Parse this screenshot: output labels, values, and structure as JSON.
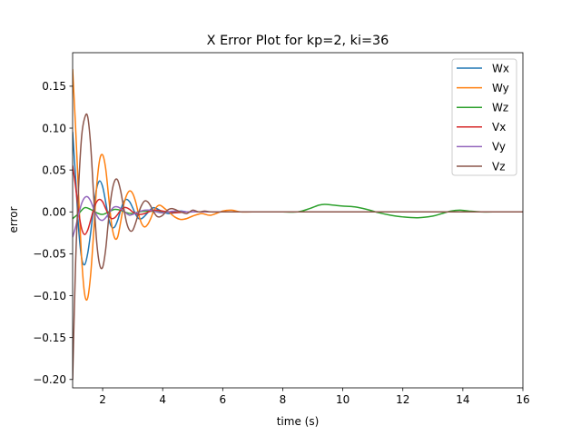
{
  "chart_data": {
    "type": "line",
    "title": "X Error Plot for kp=2, ki=36",
    "xlabel": "time (s)",
    "ylabel": "error",
    "xlim": [
      1,
      16
    ],
    "ylim": [
      -0.21,
      0.19
    ],
    "xticks": [
      2,
      4,
      6,
      8,
      10,
      12,
      14,
      16
    ],
    "xtick_labels": [
      "2",
      "4",
      "6",
      "8",
      "10",
      "12",
      "14",
      "16"
    ],
    "yticks": [
      -0.2,
      -0.15,
      -0.1,
      -0.05,
      0.0,
      0.05,
      0.1,
      0.15
    ],
    "ytick_labels": [
      "−0.20",
      "−0.15",
      "−0.10",
      "−0.05",
      "0.00",
      "0.05",
      "0.10",
      "0.15"
    ],
    "grid": false,
    "legend_position": "top-right",
    "series": [
      {
        "name": "Wx",
        "color": "#1f77b4",
        "x": [
          1.0,
          1.1,
          1.2,
          1.3,
          1.4,
          1.5,
          1.6,
          1.7,
          1.8,
          1.9,
          2.0,
          2.1,
          2.2,
          2.3,
          2.4,
          2.5,
          2.6,
          2.7,
          2.8,
          2.9,
          3.0,
          3.1,
          3.2,
          3.3,
          3.4,
          3.5,
          3.6,
          3.7,
          3.8,
          3.9,
          4.0,
          4.2,
          4.4,
          4.6,
          4.8,
          5.0,
          5.5,
          6.0,
          7.0,
          8.0,
          16.0
        ],
        "y": [
          0.095,
          0.04,
          -0.02,
          -0.055,
          -0.063,
          -0.05,
          -0.025,
          0.005,
          0.028,
          0.037,
          0.03,
          0.012,
          -0.008,
          -0.018,
          -0.018,
          -0.01,
          0.002,
          0.012,
          0.015,
          0.012,
          0.005,
          -0.003,
          -0.008,
          -0.008,
          -0.005,
          -0.001,
          0.003,
          0.005,
          0.004,
          0.002,
          0.0,
          -0.002,
          -0.001,
          0.001,
          0.0,
          0.0,
          0.0,
          0.0,
          0.0,
          0.0,
          0.0
        ]
      },
      {
        "name": "Wy",
        "color": "#ff7f0e",
        "x": [
          1.0,
          1.1,
          1.2,
          1.3,
          1.4,
          1.5,
          1.6,
          1.7,
          1.8,
          1.9,
          2.0,
          2.1,
          2.2,
          2.3,
          2.4,
          2.5,
          2.6,
          2.7,
          2.8,
          2.9,
          3.0,
          3.1,
          3.2,
          3.3,
          3.4,
          3.5,
          3.6,
          3.7,
          3.8,
          3.9,
          4.0,
          4.2,
          4.4,
          4.6,
          4.8,
          5.0,
          5.3,
          5.6,
          6.0,
          6.3,
          6.6,
          7.0,
          8.0,
          16.0
        ],
        "y": [
          0.17,
          0.1,
          0.02,
          -0.055,
          -0.098,
          -0.103,
          -0.075,
          -0.025,
          0.03,
          0.062,
          0.068,
          0.052,
          0.018,
          -0.015,
          -0.031,
          -0.03,
          -0.012,
          0.008,
          0.02,
          0.025,
          0.022,
          0.012,
          -0.003,
          -0.014,
          -0.018,
          -0.015,
          -0.008,
          0.001,
          0.006,
          0.008,
          0.006,
          0.0,
          -0.006,
          -0.009,
          -0.008,
          -0.005,
          -0.002,
          -0.004,
          0.001,
          0.002,
          0.0,
          0.0,
          0.0,
          0.0
        ]
      },
      {
        "name": "Wz",
        "color": "#2ca02c",
        "x": [
          1.0,
          1.2,
          1.4,
          1.6,
          1.8,
          2.0,
          2.2,
          2.4,
          2.6,
          2.8,
          3.0,
          3.2,
          3.5,
          4.0,
          4.5,
          5.0,
          6.0,
          7.0,
          8.0,
          8.5,
          8.9,
          9.2,
          9.4,
          9.7,
          10.0,
          10.4,
          10.8,
          11.2,
          11.6,
          12.0,
          12.5,
          13.0,
          13.3,
          13.6,
          13.9,
          14.2,
          14.6,
          15.0,
          16.0
        ],
        "y": [
          -0.008,
          -0.002,
          0.005,
          0.003,
          -0.001,
          -0.003,
          0.0,
          0.003,
          0.002,
          -0.001,
          -0.002,
          0.0,
          0.001,
          0.0,
          0.0,
          0.0,
          0.0,
          0.0,
          0.0,
          0.0,
          0.004,
          0.008,
          0.009,
          0.008,
          0.007,
          0.006,
          0.003,
          -0.001,
          -0.004,
          -0.006,
          -0.007,
          -0.005,
          -0.002,
          0.001,
          0.002,
          0.001,
          0.0,
          0.0,
          0.0
        ]
      },
      {
        "name": "Vx",
        "color": "#d62728",
        "x": [
          1.0,
          1.1,
          1.2,
          1.3,
          1.4,
          1.5,
          1.6,
          1.7,
          1.8,
          1.9,
          2.0,
          2.1,
          2.2,
          2.3,
          2.4,
          2.5,
          2.6,
          2.7,
          2.8,
          2.9,
          3.0,
          3.2,
          3.4,
          3.6,
          3.8,
          4.0,
          4.4,
          4.8,
          5.0,
          6.0,
          16.0
        ],
        "y": [
          0.055,
          0.03,
          0.0,
          -0.02,
          -0.027,
          -0.022,
          -0.01,
          0.003,
          0.012,
          0.015,
          0.012,
          0.004,
          -0.004,
          -0.008,
          -0.007,
          -0.003,
          0.002,
          0.005,
          0.005,
          0.003,
          0.0,
          -0.003,
          -0.002,
          0.001,
          0.002,
          0.001,
          -0.001,
          0.0,
          0.0,
          0.0,
          0.0
        ]
      },
      {
        "name": "Vy",
        "color": "#9467bd",
        "x": [
          1.0,
          1.1,
          1.2,
          1.3,
          1.4,
          1.5,
          1.6,
          1.7,
          1.8,
          1.9,
          2.0,
          2.1,
          2.2,
          2.3,
          2.4,
          2.5,
          2.6,
          2.7,
          2.8,
          2.9,
          3.0,
          3.2,
          3.4,
          3.6,
          3.8,
          4.0,
          4.4,
          4.8,
          5.0,
          6.0,
          16.0
        ],
        "y": [
          -0.03,
          -0.018,
          -0.003,
          0.01,
          0.017,
          0.018,
          0.013,
          0.004,
          -0.004,
          -0.009,
          -0.01,
          -0.007,
          -0.002,
          0.003,
          0.006,
          0.006,
          0.004,
          0.001,
          -0.002,
          -0.004,
          -0.003,
          0.0,
          0.002,
          0.002,
          0.0,
          -0.001,
          0.001,
          0.0,
          0.0,
          0.0,
          0.0
        ]
      },
      {
        "name": "Vz",
        "color": "#8c564b",
        "x": [
          1.0,
          1.1,
          1.2,
          1.3,
          1.4,
          1.5,
          1.6,
          1.7,
          1.8,
          1.9,
          2.0,
          2.1,
          2.2,
          2.3,
          2.4,
          2.5,
          2.6,
          2.7,
          2.8,
          2.9,
          3.0,
          3.1,
          3.2,
          3.3,
          3.4,
          3.5,
          3.6,
          3.7,
          3.8,
          3.9,
          4.0,
          4.1,
          4.2,
          4.3,
          4.4,
          4.6,
          4.8,
          5.0,
          5.2,
          5.4,
          5.6,
          6.0,
          7.0,
          16.0
        ],
        "y": [
          -0.2,
          -0.06,
          0.03,
          0.09,
          0.112,
          0.114,
          0.08,
          0.02,
          -0.035,
          -0.063,
          -0.066,
          -0.045,
          -0.008,
          0.022,
          0.037,
          0.038,
          0.025,
          0.005,
          -0.013,
          -0.022,
          -0.022,
          -0.013,
          -0.001,
          0.008,
          0.013,
          0.012,
          0.007,
          0.0,
          -0.005,
          -0.006,
          -0.004,
          0.0,
          0.003,
          0.004,
          0.003,
          0.0,
          -0.002,
          0.002,
          0.0,
          0.001,
          0.0,
          0.0,
          0.0,
          0.0
        ]
      }
    ]
  }
}
